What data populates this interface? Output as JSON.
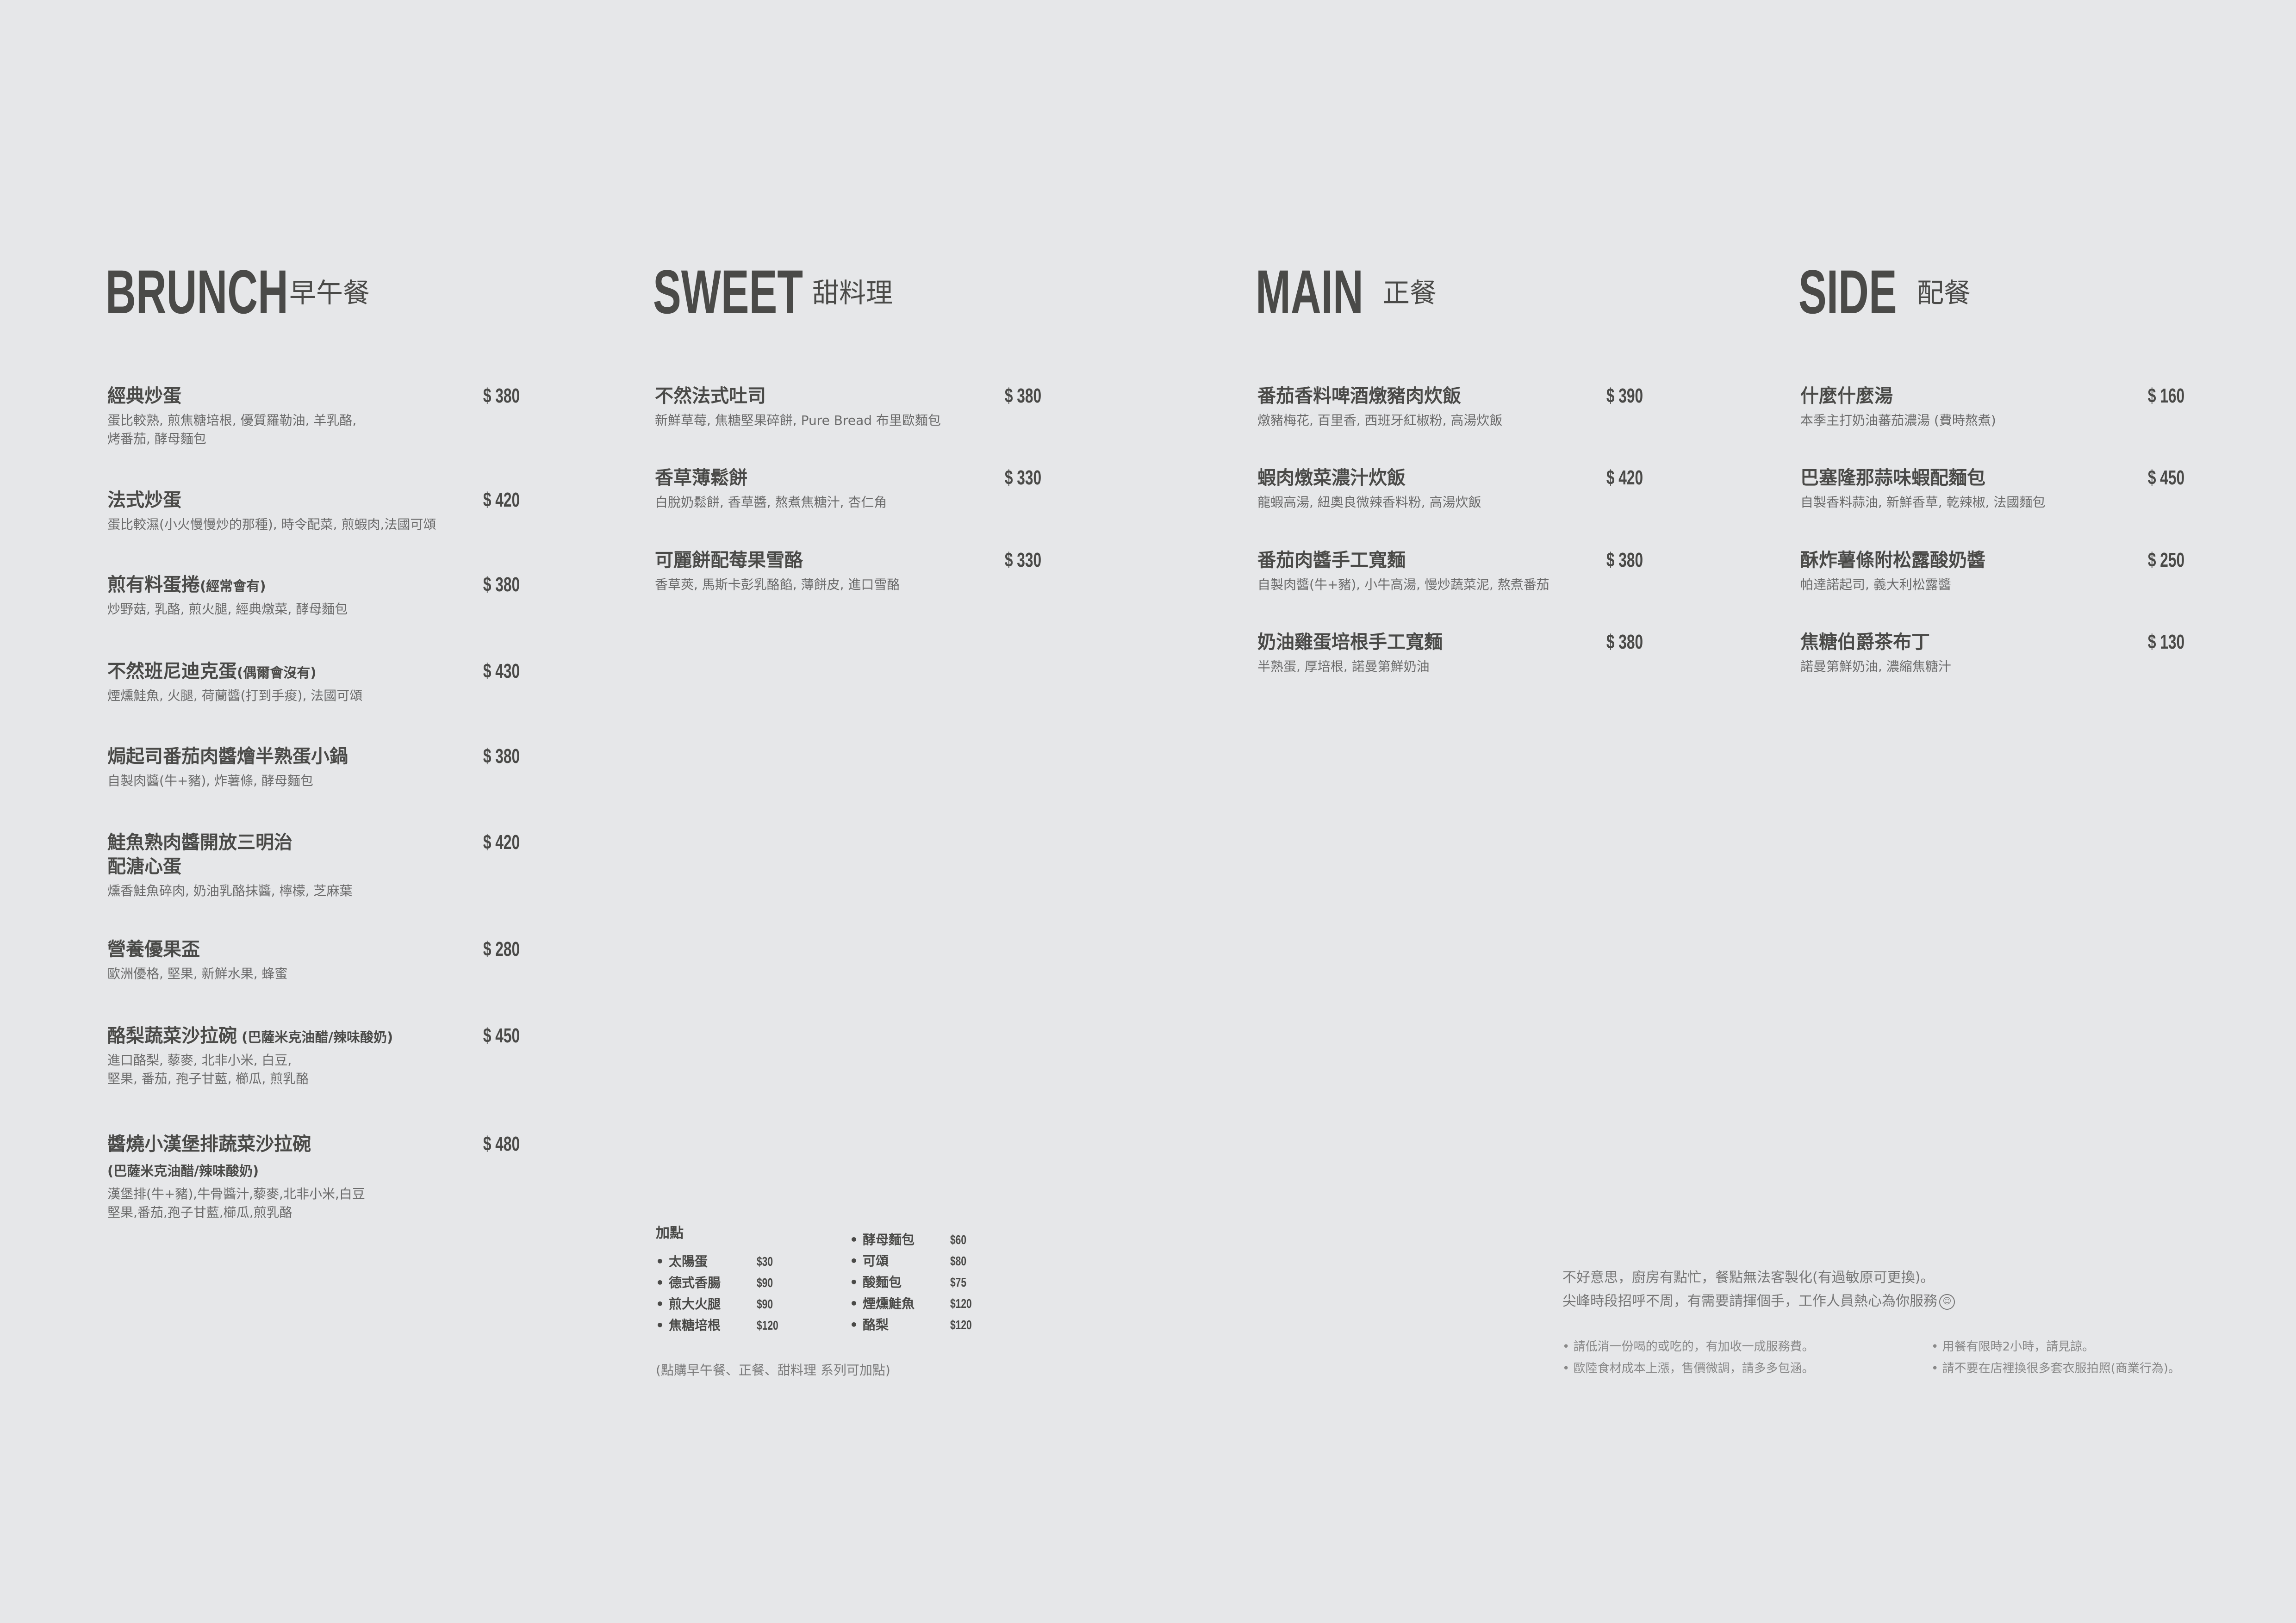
{
  "sections": [
    {
      "id": "brunch",
      "title_en": "BRUNCH",
      "title_zh": "早午餐",
      "items": [
        {
          "name": "經典炒蛋",
          "note": "",
          "price": "$ 380",
          "desc": "蛋比較熟, 煎焦糖培根, 優質羅勒油, 羊乳酪,\n烤番茄, 酵母麵包"
        },
        {
          "name": "法式炒蛋",
          "note": "",
          "price": "$ 420",
          "desc": "蛋比較濕(小火慢慢炒的那種), 時令配菜, 煎蝦肉,法國可頌"
        },
        {
          "name": "煎有料蛋捲",
          "note": "(經常會有)",
          "price": "$ 380",
          "desc": "炒野菇, 乳酪, 煎火腿, 經典燉菜, 酵母麵包"
        },
        {
          "name": "不然班尼迪克蛋",
          "note": "(偶爾會沒有)",
          "price": "$ 430",
          "desc": "煙燻鮭魚, 火腿, 荷蘭醬(打到手痠), 法國可頌"
        },
        {
          "name": "焗起司番茄肉醬燴半熟蛋小鍋",
          "note": "",
          "price": "$ 380",
          "desc": "自製肉醬(牛+豬), 炸薯條, 酵母麵包"
        },
        {
          "name": "鮭魚熟肉醬開放三明治\n配溏心蛋",
          "note": "",
          "price": "$ 420",
          "desc": "燻香鮭魚碎肉, 奶油乳酪抹醬, 檸檬, 芝麻葉"
        },
        {
          "name": "營養優果盃",
          "note": "",
          "price": "$ 280",
          "desc": "歐洲優格, 堅果, 新鮮水果, 蜂蜜"
        },
        {
          "name": "酪梨蔬菜沙拉碗",
          "note": " (巴薩米克油醋/辣味酸奶)",
          "price": "$ 450",
          "desc": "進口酪梨, 藜麥, 北非小米, 白豆,\n堅果, 番茄, 孢子甘藍, 櫛瓜, 煎乳酪"
        },
        {
          "name": "醬燒小漢堡排蔬菜沙拉碗",
          "note": "\n(巴薩米克油醋/辣味酸奶)",
          "price": "$ 480",
          "desc": "漢堡排(牛+豬),牛骨醬汁,藜麥,北非小米,白豆\n堅果,番茄,孢子甘藍,櫛瓜,煎乳酪"
        }
      ]
    },
    {
      "id": "sweet",
      "title_en": "SWEET",
      "title_zh": "甜料理",
      "items": [
        {
          "name": "不然法式吐司",
          "note": "",
          "price": "$ 380",
          "desc": "新鮮草莓, 焦糖堅果碎餅, Pure Bread 布里歐麵包"
        },
        {
          "name": "香草薄鬆餅",
          "note": "",
          "price": "$ 330",
          "desc": "白脫奶鬆餅, 香草醬, 熬煮焦糖汁, 杏仁角"
        },
        {
          "name": "可麗餅配莓果雪酪",
          "note": "",
          "price": "$ 330",
          "desc": "香草莢, 馬斯卡彭乳酪餡, 薄餅皮, 進口雪酪"
        }
      ]
    },
    {
      "id": "main",
      "title_en": "MAIN",
      "title_zh": "正餐",
      "items": [
        {
          "name": "番茄香料啤酒燉豬肉炊飯",
          "note": "",
          "price": "$ 390",
          "desc": "燉豬梅花, 百里香, 西班牙紅椒粉, 高湯炊飯"
        },
        {
          "name": "蝦肉燉菜濃汁炊飯",
          "note": "",
          "price": "$ 420",
          "desc": "龍蝦高湯, 紐奧良微辣香料粉, 高湯炊飯"
        },
        {
          "name": "番茄肉醬手工寬麵",
          "note": "",
          "price": "$ 380",
          "desc": "自製肉醬(牛+豬), 小牛高湯, 慢炒蔬菜泥, 熬煮番茄"
        },
        {
          "name": "奶油雞蛋培根手工寬麵",
          "note": "",
          "price": "$ 380",
          "desc": "半熟蛋, 厚培根, 諾曼第鮮奶油"
        }
      ]
    },
    {
      "id": "side",
      "title_en": "SIDE",
      "title_zh": "配餐",
      "items": [
        {
          "name": "什麼什麼湯",
          "note": "",
          "price": "$ 160",
          "desc": "本季主打奶油蕃茄濃湯 (費時熬煮)"
        },
        {
          "name": "巴塞隆那蒜味蝦配麵包",
          "note": "",
          "price": "$ 450",
          "desc": "自製香料蒜油, 新鮮香草, 乾辣椒, 法國麵包"
        },
        {
          "name": "酥炸薯條附松露酸奶醬",
          "note": "",
          "price": "$ 250",
          "desc": "帕達諾起司, 義大利松露醬"
        },
        {
          "name": "焦糖伯爵茶布丁",
          "note": "",
          "price": "$ 130",
          "desc": "諾曼第鮮奶油, 濃縮焦糖汁"
        }
      ]
    }
  ],
  "addons": {
    "title": "加點",
    "bullet": "•",
    "left": [
      {
        "name": "太陽蛋",
        "price": "$30"
      },
      {
        "name": "德式香腸",
        "price": "$90"
      },
      {
        "name": "煎大火腿",
        "price": "$90"
      },
      {
        "name": "焦糖培根",
        "price": "$120"
      }
    ],
    "right": [
      {
        "name": "酵母麵包",
        "price": "$60"
      },
      {
        "name": "可頌",
        "price": "$80"
      },
      {
        "name": "酸麵包",
        "price": "$75"
      },
      {
        "name": "煙燻鮭魚",
        "price": "$120"
      },
      {
        "name": "酪梨",
        "price": "$120"
      }
    ],
    "footnote": "(點購早午餐、正餐、甜料理  系列可加點)"
  },
  "notice": {
    "line1": "不好意思，廚房有點忙，餐點無法客製化(有過敏原可更換)。",
    "line2": "尖峰時段招呼不周，有需要請揮個手，工作人員熱心為你服務",
    "smiley_icon": "smiley-face-icon",
    "smiley_glyph": "☺",
    "rules": [
      "請低消一份喝的或吃的，有加收一成服務費。",
      "用餐有限時2小時，請見諒。",
      "歐陸食材成本上漲，售價微調，請多多包涵。",
      "請不要在店裡換很多套衣服拍照(商業行為)。"
    ]
  },
  "colors": {
    "background": "#e6e7e9",
    "text": "#4a4a48",
    "muted": "#6b6b6b"
  }
}
